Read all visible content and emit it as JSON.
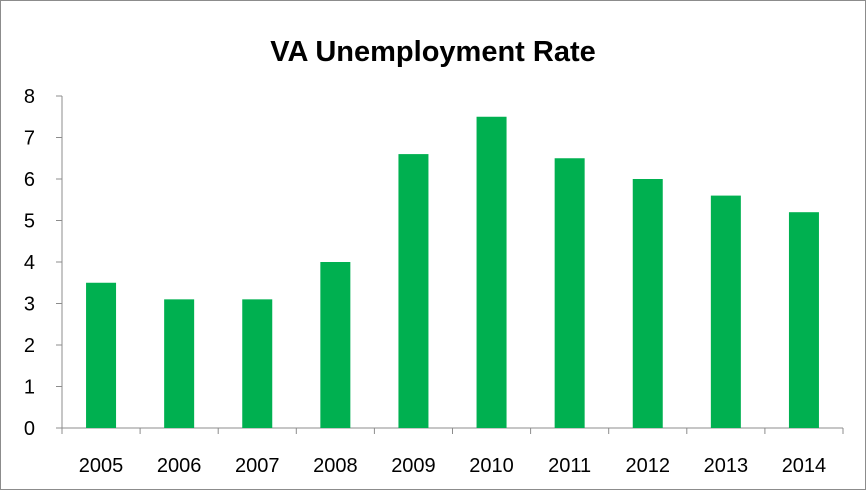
{
  "chart_data": {
    "type": "bar",
    "title": "VA Unemployment Rate",
    "xlabel": "",
    "ylabel": "",
    "categories": [
      "2005",
      "2006",
      "2007",
      "2008",
      "2009",
      "2010",
      "2011",
      "2012",
      "2013",
      "2014"
    ],
    "values": [
      3.5,
      3.1,
      3.1,
      4.0,
      6.6,
      7.5,
      6.5,
      6.0,
      5.6,
      5.2
    ],
    "ylim": [
      0,
      8
    ],
    "yticks": [
      "0",
      "1",
      "2",
      "3",
      "4",
      "5",
      "6",
      "7",
      "8"
    ],
    "bar_color": "#00b050",
    "grid": false,
    "legend": "none"
  }
}
